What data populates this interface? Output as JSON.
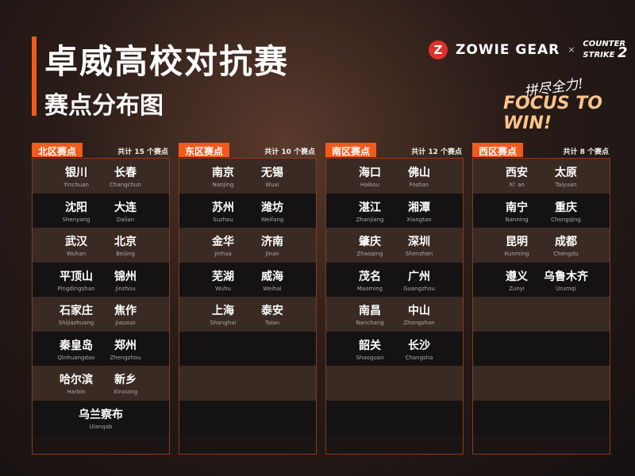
{
  "header": {
    "title": "卓威高校对抗赛",
    "subtitle": "赛点分布图",
    "brand": "ZOWIE GEAR",
    "brand_mark": "Z",
    "times": "×",
    "partner_line1": "COUNTER",
    "partner_line2": "STRIKE",
    "partner_num": "2",
    "slogan_cn": "拼尽全力!",
    "slogan": "FOCUS TO WIN!"
  },
  "accent": "#f25a1c",
  "regions": [
    {
      "name": "北区赛点",
      "count": "共计 15 个赛点",
      "rows": [
        [
          [
            "银川",
            "Yinchuan"
          ],
          [
            "长春",
            "Changchun"
          ]
        ],
        [
          [
            "沈阳",
            "Shenyang"
          ],
          [
            "大连",
            "Dalian"
          ]
        ],
        [
          [
            "武汉",
            "Wuhan"
          ],
          [
            "北京",
            "Beijing"
          ]
        ],
        [
          [
            "平顶山",
            "Pingdingshan"
          ],
          [
            "锦州",
            "Jinzhou"
          ]
        ],
        [
          [
            "石家庄",
            "Shijiazhuang"
          ],
          [
            "焦作",
            "Jiaozuo"
          ]
        ],
        [
          [
            "秦皇岛",
            "Qinhuangdao"
          ],
          [
            "郑州",
            "Zhengzhou"
          ]
        ],
        [
          [
            "哈尔滨",
            "Harbin"
          ],
          [
            "新乡",
            "Xinxiang"
          ]
        ],
        [
          [
            "乌兰察布",
            "Ulanqab"
          ]
        ]
      ]
    },
    {
      "name": "东区赛点",
      "count": "共计 10 个赛点",
      "rows": [
        [
          [
            "南京",
            "Nanjing"
          ],
          [
            "无锡",
            "Wuxi"
          ]
        ],
        [
          [
            "苏州",
            "Suzhou"
          ],
          [
            "潍坊",
            "Weifang"
          ]
        ],
        [
          [
            "金华",
            "Jinhua"
          ],
          [
            "济南",
            "Jinan"
          ]
        ],
        [
          [
            "芜湖",
            "Wuhu"
          ],
          [
            "威海",
            "Weihai"
          ]
        ],
        [
          [
            "上海",
            "Shanghai"
          ],
          [
            "泰安",
            "Taian"
          ]
        ],
        [],
        [],
        []
      ]
    },
    {
      "name": "南区赛点",
      "count": "共计 12 个赛点",
      "rows": [
        [
          [
            "海口",
            "Haikou"
          ],
          [
            "佛山",
            "Foshan"
          ]
        ],
        [
          [
            "湛江",
            "Zhanjiang"
          ],
          [
            "湘潭",
            "Xiangtan"
          ]
        ],
        [
          [
            "肇庆",
            "Zhaoqing"
          ],
          [
            "深圳",
            "Shenzhen"
          ]
        ],
        [
          [
            "茂名",
            "Maoming"
          ],
          [
            "广州",
            "Guangzhou"
          ]
        ],
        [
          [
            "南昌",
            "Nanchang"
          ],
          [
            "中山",
            "Zhongshan"
          ]
        ],
        [
          [
            "韶关",
            "Shaoguan"
          ],
          [
            "长沙",
            "Changsha"
          ]
        ],
        [],
        []
      ]
    },
    {
      "name": "西区赛点",
      "count": "共计 8 个赛点",
      "rows": [
        [
          [
            "西安",
            "Xi' an"
          ],
          [
            "太原",
            "Taiyuan"
          ]
        ],
        [
          [
            "南宁",
            "Nanning"
          ],
          [
            "重庆",
            "Chongqing"
          ]
        ],
        [
          [
            "昆明",
            "Kunming"
          ],
          [
            "成都",
            "Chengdu"
          ]
        ],
        [
          [
            "遵义",
            "Zunyi"
          ],
          [
            "乌鲁木齐",
            "Urumqi"
          ]
        ],
        [],
        [],
        [],
        []
      ]
    }
  ]
}
